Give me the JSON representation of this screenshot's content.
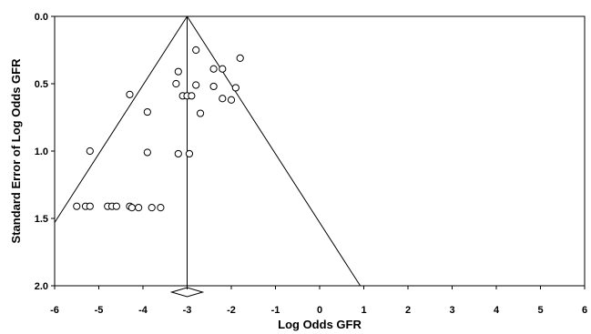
{
  "chart_data": {
    "type": "scatter",
    "title": "",
    "xlabel": "Log Odds GFR",
    "ylabel": "Standard Error of Log Odds GFR",
    "xlim": [
      -6,
      6
    ],
    "ylim": [
      0.0,
      2.0
    ],
    "y_inverted": true,
    "grid": false,
    "x_ticks": [
      "-6",
      "-5",
      "-4",
      "-3",
      "-2",
      "-1",
      "0",
      "1",
      "2",
      "3",
      "4",
      "5",
      "6"
    ],
    "y_ticks": [
      "0.0",
      "0.5",
      "1.0",
      "1.5",
      "2.0"
    ],
    "pooled_estimate": -3.0,
    "funnel_lines": true,
    "summary_diamond": true,
    "series": [
      {
        "marker": "open-circle",
        "points": [
          {
            "x": -2.8,
            "y": 0.25
          },
          {
            "x": -1.8,
            "y": 0.31
          },
          {
            "x": -2.4,
            "y": 0.39
          },
          {
            "x": -2.2,
            "y": 0.39
          },
          {
            "x": -3.2,
            "y": 0.41
          },
          {
            "x": -3.25,
            "y": 0.5
          },
          {
            "x": -2.8,
            "y": 0.51
          },
          {
            "x": -2.4,
            "y": 0.52
          },
          {
            "x": -1.9,
            "y": 0.53
          },
          {
            "x": -4.3,
            "y": 0.58
          },
          {
            "x": -3.1,
            "y": 0.59
          },
          {
            "x": -3.0,
            "y": 0.59
          },
          {
            "x": -2.9,
            "y": 0.59
          },
          {
            "x": -2.2,
            "y": 0.61
          },
          {
            "x": -2.0,
            "y": 0.62
          },
          {
            "x": -3.9,
            "y": 0.71
          },
          {
            "x": -2.7,
            "y": 0.72
          },
          {
            "x": -5.2,
            "y": 1.0
          },
          {
            "x": -3.9,
            "y": 1.01
          },
          {
            "x": -3.2,
            "y": 1.02
          },
          {
            "x": -2.95,
            "y": 1.02
          },
          {
            "x": -5.5,
            "y": 1.41
          },
          {
            "x": -5.3,
            "y": 1.41
          },
          {
            "x": -5.2,
            "y": 1.41
          },
          {
            "x": -4.8,
            "y": 1.41
          },
          {
            "x": -4.7,
            "y": 1.41
          },
          {
            "x": -4.6,
            "y": 1.41
          },
          {
            "x": -4.3,
            "y": 1.41
          },
          {
            "x": -4.25,
            "y": 1.42
          },
          {
            "x": -4.1,
            "y": 1.42
          },
          {
            "x": -3.8,
            "y": 1.42
          },
          {
            "x": -3.6,
            "y": 1.42
          }
        ]
      }
    ]
  }
}
